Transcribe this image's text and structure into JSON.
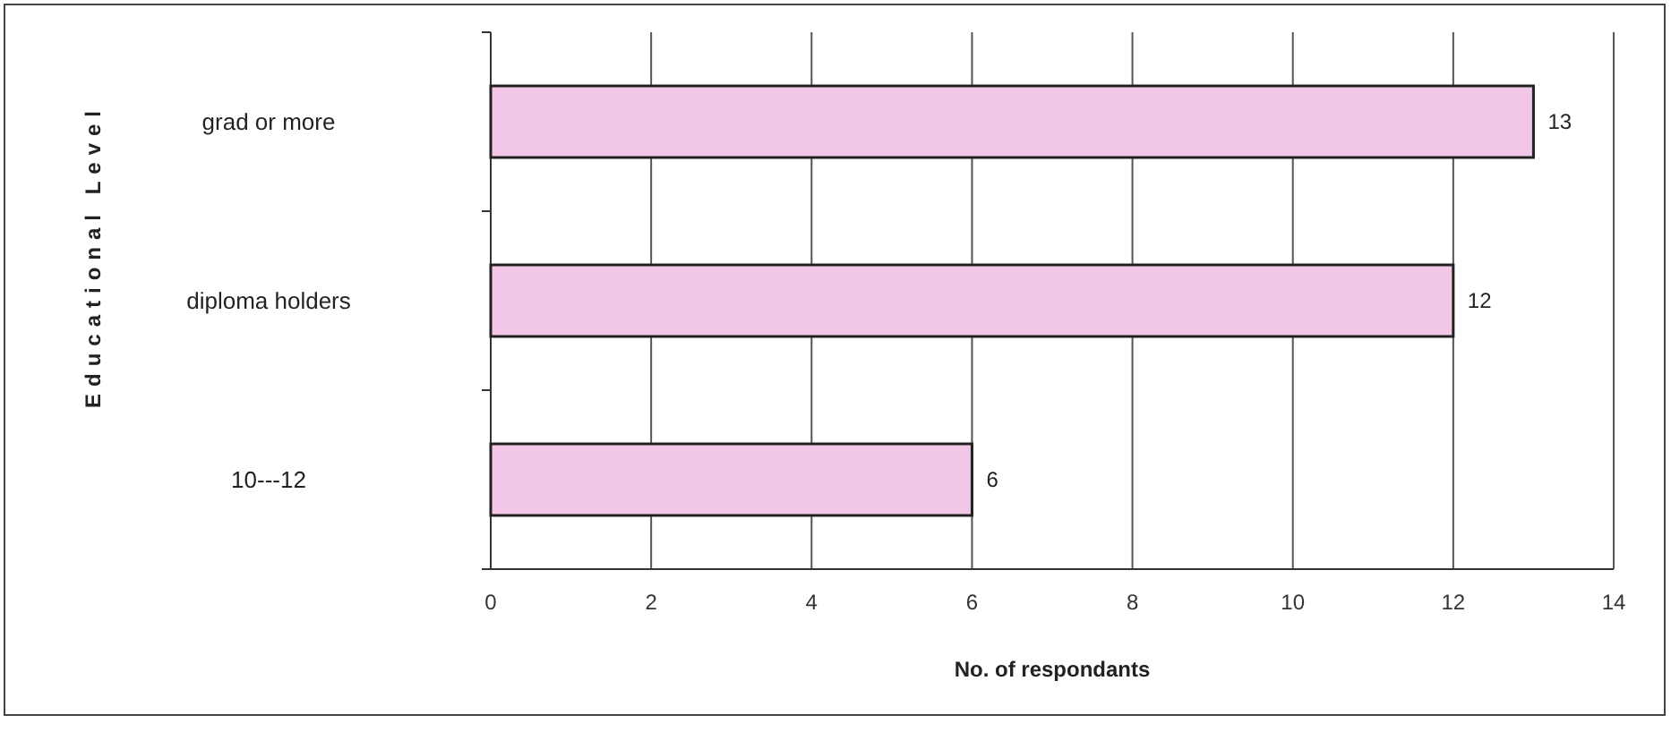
{
  "chart_data": {
    "type": "bar",
    "orientation": "horizontal",
    "xlabel": "No. of respondants",
    "ylabel": "Educational Level",
    "categories": [
      "grad or more",
      "diploma holders",
      "10---12"
    ],
    "values": [
      13,
      12,
      6
    ],
    "color": "#f2c6e6",
    "xlim": [
      0,
      14
    ],
    "xticks": [
      0,
      2,
      4,
      6,
      8,
      10,
      12,
      14
    ],
    "grid": "x",
    "data_labels": true
  }
}
